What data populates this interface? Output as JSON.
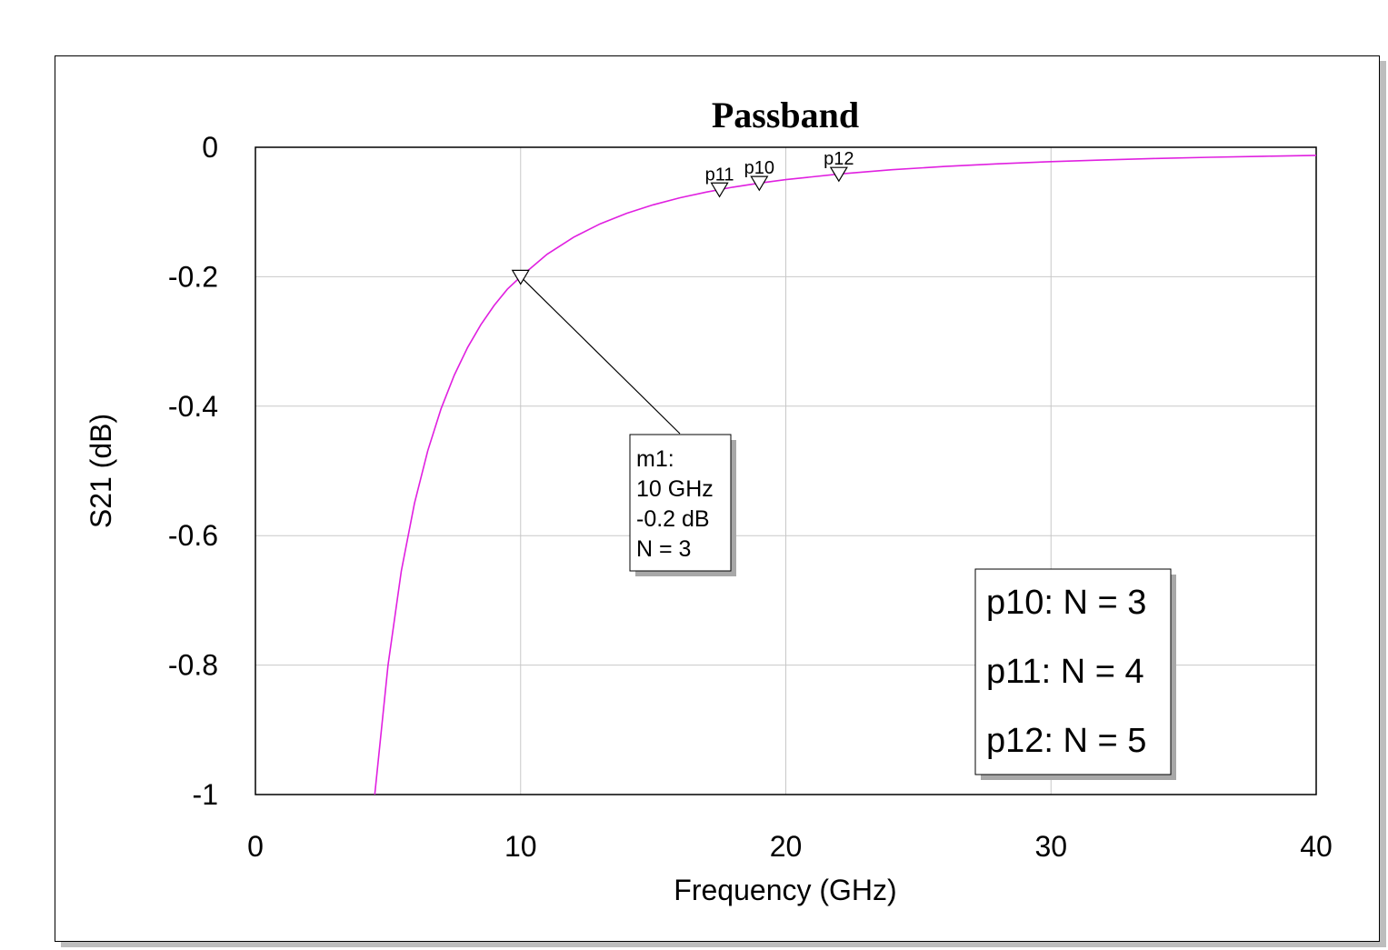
{
  "chart_data": {
    "type": "line",
    "title": "Passband",
    "xlabel": "Frequency (GHz)",
    "ylabel": "S21 (dB)",
    "xlim": [
      0,
      40
    ],
    "ylim": [
      -1,
      0
    ],
    "xticks": [
      0,
      10,
      20,
      30,
      40
    ],
    "xtick_labels": [
      "0",
      "10",
      "20",
      "30",
      "40"
    ],
    "yticks": [
      0,
      -0.2,
      -0.4,
      -0.6,
      -0.8,
      -1
    ],
    "ytick_labels": [
      "0",
      "-0.2",
      "-0.4",
      "-0.6",
      "-0.8",
      "-1"
    ],
    "grid": true,
    "series": [
      {
        "color": "#e020e0",
        "x": [
          4.5,
          5,
          5.5,
          6,
          6.5,
          7,
          7.5,
          8,
          8.5,
          9,
          9.5,
          10,
          11,
          12,
          13,
          14,
          15,
          16,
          17,
          18,
          19,
          20,
          22,
          24,
          26,
          28,
          30,
          32,
          34,
          36,
          38,
          40
        ],
        "y": [
          -1.0,
          -0.8,
          -0.6546,
          -0.55,
          -0.4688,
          -0.4041,
          -0.3519,
          -0.3094,
          -0.2741,
          -0.2444,
          -0.2193,
          -0.2,
          -0.1653,
          -0.1389,
          -0.1183,
          -0.102,
          -0.0889,
          -0.0781,
          -0.0692,
          -0.0617,
          -0.0554,
          -0.05,
          -0.0413,
          -0.0347,
          -0.0296,
          -0.0255,
          -0.0222,
          -0.0195,
          -0.0173,
          -0.0154,
          -0.0139,
          -0.0125
        ]
      }
    ],
    "markers": [
      {
        "label": "m1",
        "x": 10,
        "y": -0.2
      },
      {
        "label": "p11",
        "x": 17.5,
        "y": -0.065
      },
      {
        "label": "p10",
        "x": 19,
        "y": -0.055
      },
      {
        "label": "p12",
        "x": 22,
        "y": -0.041
      }
    ],
    "callout": {
      "marker": "m1",
      "lines": [
        "m1:",
        "10 GHz",
        "-0.2 dB",
        "N = 3"
      ]
    },
    "legend_box": {
      "lines": [
        "p10: N = 3",
        "p11: N = 4",
        "p12: N = 5"
      ]
    }
  }
}
